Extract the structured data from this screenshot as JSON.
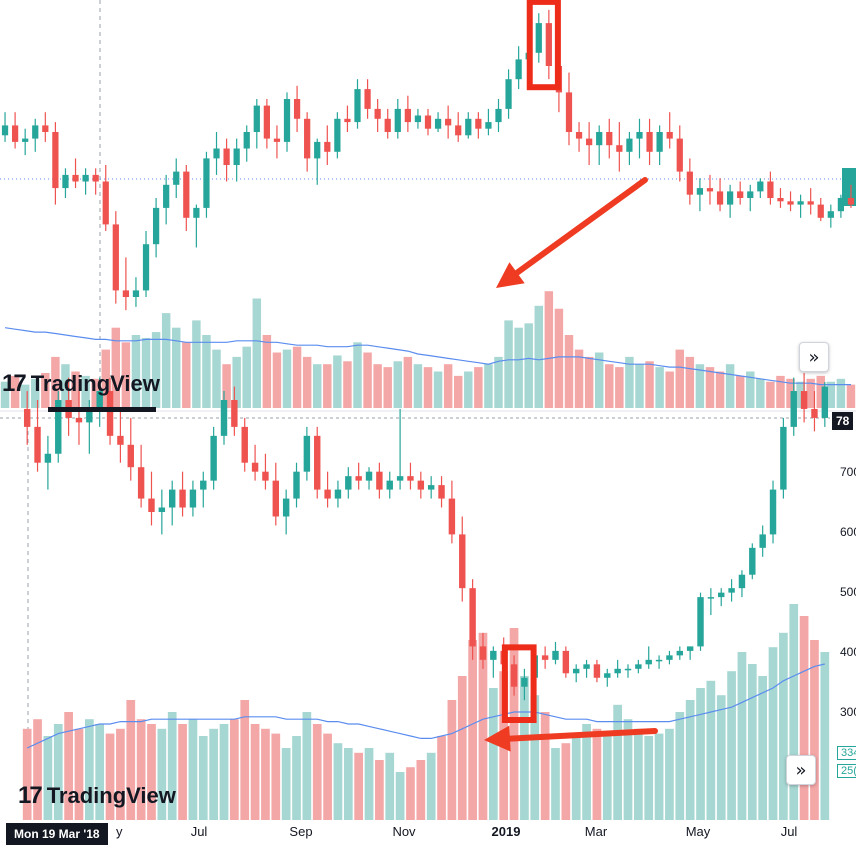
{
  "colors": {
    "up": "#26a69a",
    "down": "#ef5350",
    "vol_up": "#a7d7d2",
    "vol_down": "#f4a7a7",
    "ma_line": "#5b8def",
    "highlight": "#ee2c1a",
    "arrow": "#ee3b22",
    "last_price_line": "#5b8def"
  },
  "branding": {
    "logo_mark": "17",
    "logo_name": "TradingView"
  },
  "top_panel": {
    "scroll_icon": "»",
    "last_price_line_visible": true,
    "highlight_box": true,
    "arrow": true
  },
  "bottom_panel": {
    "cursor_date": "Mon 19 Mar '18",
    "price_badge": "78",
    "price_ticks": [
      "700",
      "600",
      "500",
      "400",
      "300"
    ],
    "x_ticks": [
      "Jul",
      "Sep",
      "Nov",
      "2019",
      "Mar",
      "May",
      "Jul"
    ],
    "x_tick_partial": "y",
    "ma_badges": [
      "334",
      "25("
    ],
    "scroll_icon": "»",
    "highlight_box": true,
    "arrow": true
  },
  "chart_data": [
    {
      "type": "candlestick",
      "title": "",
      "xlabel": "",
      "ylabel": "",
      "x_ticks": [],
      "y_ticks": [],
      "candles": [
        [
          0.59,
          0.66,
          0.57,
          0.62
        ],
        [
          0.62,
          0.66,
          0.55,
          0.57
        ],
        [
          0.57,
          0.61,
          0.53,
          0.58
        ],
        [
          0.58,
          0.64,
          0.54,
          0.62
        ],
        [
          0.62,
          0.66,
          0.57,
          0.6
        ],
        [
          0.6,
          0.63,
          0.38,
          0.43
        ],
        [
          0.43,
          0.49,
          0.4,
          0.47
        ],
        [
          0.47,
          0.52,
          0.43,
          0.45
        ],
        [
          0.45,
          0.49,
          0.41,
          0.47
        ],
        [
          0.47,
          0.49,
          0.41,
          0.45
        ],
        [
          0.45,
          0.5,
          0.3,
          0.32
        ],
        [
          0.32,
          0.36,
          0.08,
          0.12
        ],
        [
          0.12,
          0.22,
          0.06,
          0.1
        ],
        [
          0.1,
          0.16,
          0.07,
          0.12
        ],
        [
          0.12,
          0.3,
          0.1,
          0.26
        ],
        [
          0.26,
          0.4,
          0.22,
          0.37
        ],
        [
          0.37,
          0.47,
          0.32,
          0.44
        ],
        [
          0.44,
          0.52,
          0.4,
          0.48
        ],
        [
          0.48,
          0.5,
          0.3,
          0.34
        ],
        [
          0.34,
          0.38,
          0.25,
          0.37
        ],
        [
          0.37,
          0.54,
          0.34,
          0.52
        ],
        [
          0.52,
          0.6,
          0.47,
          0.55
        ],
        [
          0.55,
          0.58,
          0.45,
          0.5
        ],
        [
          0.5,
          0.58,
          0.45,
          0.55
        ],
        [
          0.55,
          0.62,
          0.51,
          0.6
        ],
        [
          0.6,
          0.7,
          0.55,
          0.68
        ],
        [
          0.68,
          0.7,
          0.55,
          0.58
        ],
        [
          0.58,
          0.62,
          0.52,
          0.57
        ],
        [
          0.57,
          0.72,
          0.54,
          0.7
        ],
        [
          0.7,
          0.74,
          0.6,
          0.64
        ],
        [
          0.64,
          0.66,
          0.48,
          0.52
        ],
        [
          0.52,
          0.58,
          0.44,
          0.57
        ],
        [
          0.57,
          0.62,
          0.5,
          0.54
        ],
        [
          0.54,
          0.66,
          0.52,
          0.64
        ],
        [
          0.64,
          0.68,
          0.6,
          0.63
        ],
        [
          0.63,
          0.76,
          0.61,
          0.73
        ],
        [
          0.73,
          0.76,
          0.64,
          0.67
        ],
        [
          0.67,
          0.7,
          0.6,
          0.64
        ],
        [
          0.64,
          0.67,
          0.58,
          0.6
        ],
        [
          0.6,
          0.7,
          0.58,
          0.67
        ],
        [
          0.67,
          0.71,
          0.6,
          0.63
        ],
        [
          0.63,
          0.67,
          0.61,
          0.65
        ],
        [
          0.65,
          0.67,
          0.59,
          0.61
        ],
        [
          0.61,
          0.66,
          0.6,
          0.64
        ],
        [
          0.64,
          0.68,
          0.58,
          0.62
        ],
        [
          0.62,
          0.66,
          0.57,
          0.59
        ],
        [
          0.59,
          0.66,
          0.58,
          0.64
        ],
        [
          0.64,
          0.66,
          0.58,
          0.61
        ],
        [
          0.61,
          0.67,
          0.59,
          0.63
        ],
        [
          0.63,
          0.7,
          0.6,
          0.67
        ],
        [
          0.67,
          0.79,
          0.64,
          0.76
        ],
        [
          0.76,
          0.86,
          0.73,
          0.82
        ],
        [
          0.82,
          0.87,
          0.79,
          0.84
        ],
        [
          0.84,
          0.96,
          0.81,
          0.93
        ],
        [
          0.93,
          0.97,
          0.76,
          0.8
        ],
        [
          0.8,
          0.84,
          0.66,
          0.72
        ],
        [
          0.72,
          0.78,
          0.56,
          0.6
        ],
        [
          0.6,
          0.63,
          0.54,
          0.58
        ],
        [
          0.58,
          0.63,
          0.5,
          0.56
        ],
        [
          0.56,
          0.62,
          0.5,
          0.6
        ],
        [
          0.6,
          0.64,
          0.52,
          0.56
        ],
        [
          0.56,
          0.63,
          0.48,
          0.54
        ],
        [
          0.54,
          0.6,
          0.5,
          0.58
        ],
        [
          0.58,
          0.64,
          0.52,
          0.6
        ],
        [
          0.6,
          0.64,
          0.5,
          0.54
        ],
        [
          0.54,
          0.62,
          0.5,
          0.6
        ],
        [
          0.6,
          0.66,
          0.55,
          0.58
        ],
        [
          0.58,
          0.62,
          0.45,
          0.48
        ],
        [
          0.48,
          0.52,
          0.38,
          0.41
        ],
        [
          0.41,
          0.46,
          0.36,
          0.43
        ],
        [
          0.43,
          0.47,
          0.38,
          0.42
        ],
        [
          0.42,
          0.46,
          0.36,
          0.38
        ],
        [
          0.38,
          0.44,
          0.34,
          0.42
        ],
        [
          0.42,
          0.45,
          0.38,
          0.4
        ],
        [
          0.4,
          0.44,
          0.36,
          0.42
        ],
        [
          0.42,
          0.46,
          0.4,
          0.45
        ],
        [
          0.45,
          0.48,
          0.38,
          0.4
        ],
        [
          0.4,
          0.43,
          0.37,
          0.39
        ],
        [
          0.39,
          0.42,
          0.36,
          0.38
        ],
        [
          0.38,
          0.41,
          0.34,
          0.39
        ],
        [
          0.39,
          0.43,
          0.35,
          0.38
        ],
        [
          0.38,
          0.4,
          0.33,
          0.34
        ],
        [
          0.34,
          0.38,
          0.31,
          0.36
        ],
        [
          0.36,
          0.41,
          0.34,
          0.4
        ],
        [
          0.4,
          0.44,
          0.37,
          0.38
        ]
      ],
      "volumes": [
        0.18,
        0.22,
        0.16,
        0.2,
        0.24,
        0.35,
        0.3,
        0.25,
        0.22,
        0.2,
        0.4,
        0.55,
        0.45,
        0.5,
        0.48,
        0.52,
        0.65,
        0.55,
        0.45,
        0.6,
        0.5,
        0.4,
        0.3,
        0.35,
        0.42,
        0.75,
        0.5,
        0.38,
        0.4,
        0.42,
        0.35,
        0.3,
        0.3,
        0.36,
        0.32,
        0.45,
        0.38,
        0.3,
        0.28,
        0.32,
        0.35,
        0.3,
        0.28,
        0.25,
        0.3,
        0.22,
        0.25,
        0.28,
        0.3,
        0.35,
        0.6,
        0.55,
        0.58,
        0.7,
        0.8,
        0.68,
        0.5,
        0.4,
        0.35,
        0.38,
        0.3,
        0.28,
        0.35,
        0.3,
        0.32,
        0.28,
        0.25,
        0.4,
        0.35,
        0.3,
        0.28,
        0.25,
        0.3,
        0.22,
        0.25,
        0.2,
        0.18,
        0.22,
        0.2,
        0.18,
        0.2,
        0.22,
        0.18,
        0.2,
        0.16
      ],
      "ma_values": [
        0.55,
        0.54,
        0.53,
        0.52,
        0.52,
        0.51,
        0.5,
        0.49,
        0.48,
        0.47,
        0.47,
        0.46,
        0.46,
        0.46,
        0.47,
        0.47,
        0.47,
        0.46,
        0.45,
        0.45,
        0.45,
        0.45,
        0.45,
        0.46,
        0.46,
        0.46,
        0.45,
        0.45,
        0.44,
        0.43,
        0.43,
        0.43,
        0.42,
        0.42,
        0.42,
        0.43,
        0.43,
        0.42,
        0.41,
        0.4,
        0.39,
        0.37,
        0.36,
        0.35,
        0.34,
        0.33,
        0.32,
        0.31,
        0.3,
        0.32,
        0.33,
        0.33,
        0.34,
        0.33,
        0.34,
        0.35,
        0.35,
        0.35,
        0.34,
        0.33,
        0.32,
        0.31,
        0.3,
        0.3,
        0.3,
        0.29,
        0.28,
        0.28,
        0.27,
        0.26,
        0.25,
        0.24,
        0.23,
        0.22,
        0.21,
        0.2,
        0.19,
        0.18,
        0.17,
        0.17,
        0.17,
        0.16,
        0.16,
        0.16,
        0.16
      ],
      "highlight_candles": [
        53,
        54
      ]
    },
    {
      "type": "candlestick",
      "title": "",
      "xlabel": "",
      "ylabel": "",
      "x_ticks": [
        "Jul",
        "Sep",
        "Nov",
        "2019",
        "Mar",
        "May",
        "Jul"
      ],
      "y_ticks": [
        "700",
        "600",
        "500",
        "400",
        "300"
      ],
      "candles": [
        [
          0.98,
          1.02,
          0.9,
          0.94
        ],
        [
          0.94,
          1.0,
          0.84,
          0.86
        ],
        [
          0.86,
          0.92,
          0.8,
          0.88
        ],
        [
          0.88,
          1.02,
          0.86,
          1.0
        ],
        [
          1.0,
          1.05,
          0.92,
          0.96
        ],
        [
          0.96,
          1.02,
          0.9,
          0.95
        ],
        [
          0.95,
          1.0,
          0.88,
          0.98
        ],
        [
          0.98,
          1.05,
          0.94,
          1.02
        ],
        [
          1.02,
          1.05,
          0.9,
          0.92
        ],
        [
          0.92,
          0.98,
          0.86,
          0.9
        ],
        [
          0.9,
          0.96,
          0.82,
          0.85
        ],
        [
          0.85,
          0.9,
          0.76,
          0.78
        ],
        [
          0.78,
          0.84,
          0.72,
          0.75
        ],
        [
          0.75,
          0.8,
          0.7,
          0.76
        ],
        [
          0.76,
          0.82,
          0.72,
          0.8
        ],
        [
          0.8,
          0.84,
          0.74,
          0.76
        ],
        [
          0.76,
          0.82,
          0.74,
          0.8
        ],
        [
          0.8,
          0.84,
          0.76,
          0.82
        ],
        [
          0.82,
          0.94,
          0.8,
          0.92
        ],
        [
          0.92,
          1.02,
          0.9,
          1.0
        ],
        [
          1.0,
          1.03,
          0.92,
          0.94
        ],
        [
          0.94,
          0.96,
          0.84,
          0.86
        ],
        [
          0.86,
          0.9,
          0.82,
          0.84
        ],
        [
          0.84,
          0.88,
          0.8,
          0.82
        ],
        [
          0.82,
          0.86,
          0.72,
          0.74
        ],
        [
          0.74,
          0.8,
          0.7,
          0.78
        ],
        [
          0.78,
          0.86,
          0.76,
          0.84
        ],
        [
          0.84,
          0.94,
          0.82,
          0.92
        ],
        [
          0.92,
          0.94,
          0.78,
          0.8
        ],
        [
          0.8,
          0.84,
          0.76,
          0.78
        ],
        [
          0.78,
          0.82,
          0.76,
          0.8
        ],
        [
          0.8,
          0.85,
          0.78,
          0.83
        ],
        [
          0.83,
          0.86,
          0.8,
          0.82
        ],
        [
          0.82,
          0.85,
          0.8,
          0.84
        ],
        [
          0.84,
          0.86,
          0.78,
          0.8
        ],
        [
          0.8,
          0.84,
          0.78,
          0.82
        ],
        [
          0.82,
          0.98,
          0.8,
          0.83
        ],
        [
          0.83,
          0.86,
          0.8,
          0.82
        ],
        [
          0.82,
          0.84,
          0.78,
          0.8
        ],
        [
          0.8,
          0.83,
          0.78,
          0.81
        ],
        [
          0.81,
          0.83,
          0.76,
          0.78
        ],
        [
          0.78,
          0.82,
          0.68,
          0.7
        ],
        [
          0.7,
          0.74,
          0.55,
          0.58
        ],
        [
          0.58,
          0.6,
          0.42,
          0.45
        ],
        [
          0.45,
          0.48,
          0.4,
          0.42
        ],
        [
          0.42,
          0.45,
          0.38,
          0.44
        ],
        [
          0.44,
          0.47,
          0.4,
          0.41
        ],
        [
          0.41,
          0.43,
          0.34,
          0.36
        ],
        [
          0.36,
          0.4,
          0.33,
          0.38
        ],
        [
          0.38,
          0.45,
          0.36,
          0.43
        ],
        [
          0.43,
          0.45,
          0.4,
          0.42
        ],
        [
          0.42,
          0.46,
          0.41,
          0.44
        ],
        [
          0.44,
          0.45,
          0.38,
          0.39
        ],
        [
          0.39,
          0.41,
          0.37,
          0.4
        ],
        [
          0.4,
          0.42,
          0.38,
          0.41
        ],
        [
          0.41,
          0.42,
          0.37,
          0.38
        ],
        [
          0.38,
          0.4,
          0.36,
          0.39
        ],
        [
          0.39,
          0.42,
          0.38,
          0.4
        ],
        [
          0.4,
          0.41,
          0.38,
          0.4
        ],
        [
          0.4,
          0.42,
          0.39,
          0.41
        ],
        [
          0.41,
          0.45,
          0.4,
          0.42
        ],
        [
          0.42,
          0.43,
          0.4,
          0.42
        ],
        [
          0.42,
          0.44,
          0.41,
          0.43
        ],
        [
          0.43,
          0.45,
          0.42,
          0.44
        ],
        [
          0.44,
          0.45,
          0.42,
          0.45
        ],
        [
          0.45,
          0.57,
          0.44,
          0.56
        ],
        [
          0.56,
          0.58,
          0.52,
          0.56
        ],
        [
          0.56,
          0.58,
          0.54,
          0.57
        ],
        [
          0.57,
          0.6,
          0.55,
          0.58
        ],
        [
          0.58,
          0.62,
          0.56,
          0.61
        ],
        [
          0.61,
          0.68,
          0.6,
          0.67
        ],
        [
          0.67,
          0.72,
          0.65,
          0.7
        ],
        [
          0.7,
          0.82,
          0.68,
          0.8
        ],
        [
          0.8,
          0.96,
          0.78,
          0.94
        ],
        [
          0.94,
          1.05,
          0.92,
          1.02
        ],
        [
          1.02,
          1.06,
          0.95,
          0.98
        ],
        [
          0.98,
          1.02,
          0.93,
          0.96
        ],
        [
          0.96,
          1.04,
          0.94,
          1.03
        ]
      ],
      "volumes": [
        0.38,
        0.42,
        0.35,
        0.4,
        0.45,
        0.38,
        0.42,
        0.4,
        0.36,
        0.38,
        0.5,
        0.42,
        0.4,
        0.38,
        0.45,
        0.4,
        0.42,
        0.35,
        0.38,
        0.4,
        0.42,
        0.5,
        0.4,
        0.38,
        0.36,
        0.3,
        0.35,
        0.45,
        0.4,
        0.36,
        0.32,
        0.3,
        0.28,
        0.3,
        0.25,
        0.28,
        0.2,
        0.22,
        0.25,
        0.28,
        0.35,
        0.5,
        0.6,
        0.75,
        0.78,
        0.55,
        0.62,
        0.8,
        0.6,
        0.52,
        0.45,
        0.3,
        0.32,
        0.35,
        0.4,
        0.38,
        0.35,
        0.48,
        0.42,
        0.38,
        0.35,
        0.36,
        0.38,
        0.45,
        0.5,
        0.55,
        0.58,
        0.52,
        0.62,
        0.7,
        0.65,
        0.6,
        0.72,
        0.78,
        0.9,
        0.85,
        0.75,
        0.7
      ],
      "ma_values": [
        0.3,
        0.32,
        0.34,
        0.36,
        0.37,
        0.38,
        0.39,
        0.4,
        0.4,
        0.41,
        0.41,
        0.41,
        0.42,
        0.42,
        0.42,
        0.42,
        0.42,
        0.42,
        0.42,
        0.42,
        0.42,
        0.43,
        0.43,
        0.43,
        0.43,
        0.42,
        0.42,
        0.42,
        0.42,
        0.41,
        0.41,
        0.4,
        0.4,
        0.39,
        0.38,
        0.37,
        0.36,
        0.35,
        0.34,
        0.34,
        0.35,
        0.36,
        0.38,
        0.4,
        0.42,
        0.43,
        0.44,
        0.45,
        0.45,
        0.45,
        0.44,
        0.43,
        0.42,
        0.42,
        0.42,
        0.41,
        0.41,
        0.41,
        0.41,
        0.41,
        0.41,
        0.41,
        0.41,
        0.42,
        0.43,
        0.44,
        0.45,
        0.46,
        0.47,
        0.49,
        0.51,
        0.53,
        0.55,
        0.58,
        0.6,
        0.62,
        0.64,
        0.65
      ],
      "highlight_candles": [
        47,
        48
      ]
    }
  ]
}
